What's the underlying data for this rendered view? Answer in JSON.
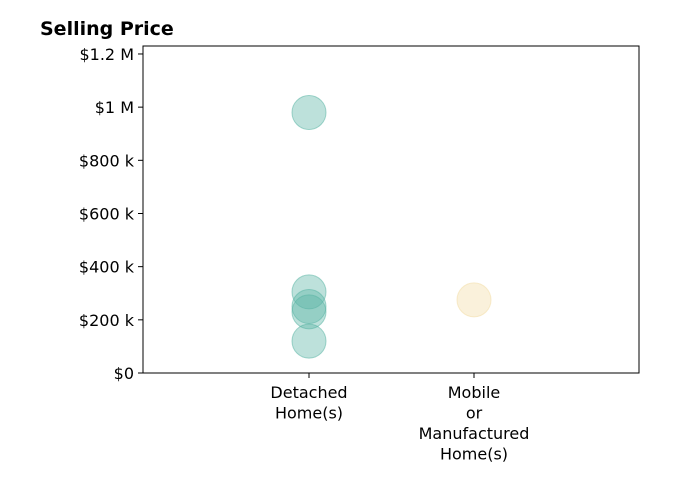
{
  "chart_data": {
    "type": "scatter",
    "title": "Selling Price",
    "xlabel": "",
    "ylabel": "",
    "ylim": [
      0,
      1230000
    ],
    "y_ticks": [
      {
        "value": 0,
        "label": "$0"
      },
      {
        "value": 200000,
        "label": "$200 k"
      },
      {
        "value": 400000,
        "label": "$400 k"
      },
      {
        "value": 600000,
        "label": "$600 k"
      },
      {
        "value": 800000,
        "label": "$800 k"
      },
      {
        "value": 1000000,
        "label": "$1 M"
      },
      {
        "value": 1200000,
        "label": "$1.2 M"
      }
    ],
    "categories": [
      {
        "key": "detached",
        "lines": [
          "Detached",
          "Home(s)"
        ]
      },
      {
        "key": "mobile",
        "lines": [
          "Mobile",
          "or",
          "Manufactured",
          "Home(s)"
        ]
      }
    ],
    "series": [
      {
        "category_index": 0,
        "color": "#5ab4a4",
        "values": [
          980000,
          305000,
          250000,
          230000,
          120000
        ]
      },
      {
        "category_index": 1,
        "color": "#f2dca6",
        "values": [
          275000
        ]
      }
    ],
    "grid": false,
    "legend": "none"
  }
}
